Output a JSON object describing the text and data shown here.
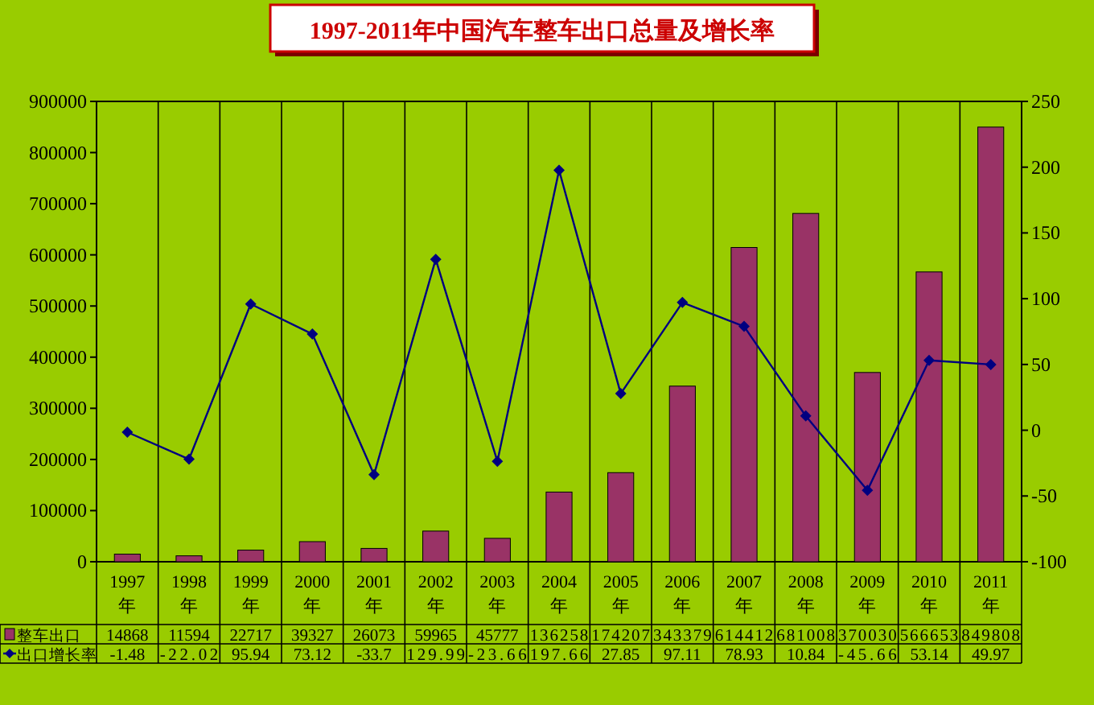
{
  "chart_data": {
    "type": "bar",
    "title": "1997-2011年中国汽车整车出口总量及增长率",
    "categories": [
      "1997年",
      "1998年",
      "1999年",
      "2000年",
      "2001年",
      "2002年",
      "2003年",
      "2004年",
      "2005年",
      "2006年",
      "2007年",
      "2008年",
      "2009年",
      "2010年",
      "2011年"
    ],
    "series": [
      {
        "name": "整车出口",
        "color": "#993366",
        "values": [
          14868,
          11594,
          22717,
          39327,
          26073,
          59965,
          45777,
          136258,
          174207,
          343379,
          614412,
          681008,
          370030,
          566653,
          849808
        ]
      },
      {
        "name": "出口增长率",
        "type": "line",
        "axis": "y2",
        "color": "#000080",
        "marker": "diamond",
        "values": [
          -1.48,
          -22.02,
          95.94,
          73.12,
          -33.7,
          129.99,
          -23.66,
          197.66,
          27.85,
          97.11,
          78.93,
          10.84,
          -45.66,
          53.14,
          49.97
        ]
      }
    ],
    "ylim": [
      0,
      900000
    ],
    "yticks": [
      0,
      100000,
      200000,
      300000,
      400000,
      500000,
      600000,
      700000,
      800000,
      900000
    ],
    "y2lim": [
      -100,
      250
    ],
    "y2ticks": [
      -100,
      -50,
      0,
      50,
      100,
      150,
      200,
      250
    ],
    "grid": "x",
    "legend": "bottom left",
    "data_labels": true
  }
}
